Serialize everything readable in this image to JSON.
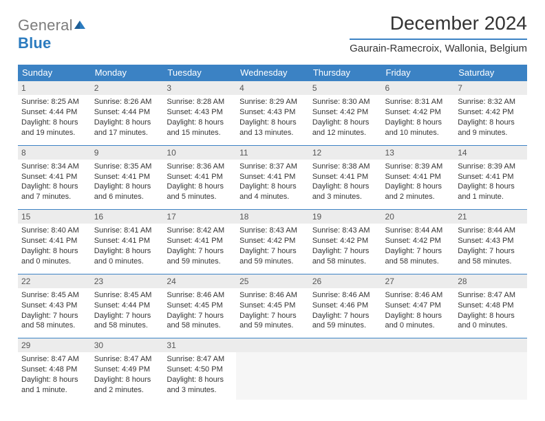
{
  "colors": {
    "accent": "#3b82c4",
    "header_cell_bg": "#ececec",
    "logo_gray": "#7c7c7c",
    "logo_blue": "#2b7bbf",
    "text": "#333333",
    "background": "#ffffff"
  },
  "logo": {
    "text_gray": "General",
    "text_blue": "Blue"
  },
  "title": "December 2024",
  "location": "Gaurain-Ramecroix, Wallonia, Belgium",
  "weekdays": [
    "Sunday",
    "Monday",
    "Tuesday",
    "Wednesday",
    "Thursday",
    "Friday",
    "Saturday"
  ],
  "days": [
    {
      "n": "1",
      "sr": "Sunrise: 8:25 AM",
      "ss": "Sunset: 4:44 PM",
      "dl1": "Daylight: 8 hours",
      "dl2": "and 19 minutes."
    },
    {
      "n": "2",
      "sr": "Sunrise: 8:26 AM",
      "ss": "Sunset: 4:44 PM",
      "dl1": "Daylight: 8 hours",
      "dl2": "and 17 minutes."
    },
    {
      "n": "3",
      "sr": "Sunrise: 8:28 AM",
      "ss": "Sunset: 4:43 PM",
      "dl1": "Daylight: 8 hours",
      "dl2": "and 15 minutes."
    },
    {
      "n": "4",
      "sr": "Sunrise: 8:29 AM",
      "ss": "Sunset: 4:43 PM",
      "dl1": "Daylight: 8 hours",
      "dl2": "and 13 minutes."
    },
    {
      "n": "5",
      "sr": "Sunrise: 8:30 AM",
      "ss": "Sunset: 4:42 PM",
      "dl1": "Daylight: 8 hours",
      "dl2": "and 12 minutes."
    },
    {
      "n": "6",
      "sr": "Sunrise: 8:31 AM",
      "ss": "Sunset: 4:42 PM",
      "dl1": "Daylight: 8 hours",
      "dl2": "and 10 minutes."
    },
    {
      "n": "7",
      "sr": "Sunrise: 8:32 AM",
      "ss": "Sunset: 4:42 PM",
      "dl1": "Daylight: 8 hours",
      "dl2": "and 9 minutes."
    },
    {
      "n": "8",
      "sr": "Sunrise: 8:34 AM",
      "ss": "Sunset: 4:41 PM",
      "dl1": "Daylight: 8 hours",
      "dl2": "and 7 minutes."
    },
    {
      "n": "9",
      "sr": "Sunrise: 8:35 AM",
      "ss": "Sunset: 4:41 PM",
      "dl1": "Daylight: 8 hours",
      "dl2": "and 6 minutes."
    },
    {
      "n": "10",
      "sr": "Sunrise: 8:36 AM",
      "ss": "Sunset: 4:41 PM",
      "dl1": "Daylight: 8 hours",
      "dl2": "and 5 minutes."
    },
    {
      "n": "11",
      "sr": "Sunrise: 8:37 AM",
      "ss": "Sunset: 4:41 PM",
      "dl1": "Daylight: 8 hours",
      "dl2": "and 4 minutes."
    },
    {
      "n": "12",
      "sr": "Sunrise: 8:38 AM",
      "ss": "Sunset: 4:41 PM",
      "dl1": "Daylight: 8 hours",
      "dl2": "and 3 minutes."
    },
    {
      "n": "13",
      "sr": "Sunrise: 8:39 AM",
      "ss": "Sunset: 4:41 PM",
      "dl1": "Daylight: 8 hours",
      "dl2": "and 2 minutes."
    },
    {
      "n": "14",
      "sr": "Sunrise: 8:39 AM",
      "ss": "Sunset: 4:41 PM",
      "dl1": "Daylight: 8 hours",
      "dl2": "and 1 minute."
    },
    {
      "n": "15",
      "sr": "Sunrise: 8:40 AM",
      "ss": "Sunset: 4:41 PM",
      "dl1": "Daylight: 8 hours",
      "dl2": "and 0 minutes."
    },
    {
      "n": "16",
      "sr": "Sunrise: 8:41 AM",
      "ss": "Sunset: 4:41 PM",
      "dl1": "Daylight: 8 hours",
      "dl2": "and 0 minutes."
    },
    {
      "n": "17",
      "sr": "Sunrise: 8:42 AM",
      "ss": "Sunset: 4:41 PM",
      "dl1": "Daylight: 7 hours",
      "dl2": "and 59 minutes."
    },
    {
      "n": "18",
      "sr": "Sunrise: 8:43 AM",
      "ss": "Sunset: 4:42 PM",
      "dl1": "Daylight: 7 hours",
      "dl2": "and 59 minutes."
    },
    {
      "n": "19",
      "sr": "Sunrise: 8:43 AM",
      "ss": "Sunset: 4:42 PM",
      "dl1": "Daylight: 7 hours",
      "dl2": "and 58 minutes."
    },
    {
      "n": "20",
      "sr": "Sunrise: 8:44 AM",
      "ss": "Sunset: 4:42 PM",
      "dl1": "Daylight: 7 hours",
      "dl2": "and 58 minutes."
    },
    {
      "n": "21",
      "sr": "Sunrise: 8:44 AM",
      "ss": "Sunset: 4:43 PM",
      "dl1": "Daylight: 7 hours",
      "dl2": "and 58 minutes."
    },
    {
      "n": "22",
      "sr": "Sunrise: 8:45 AM",
      "ss": "Sunset: 4:43 PM",
      "dl1": "Daylight: 7 hours",
      "dl2": "and 58 minutes."
    },
    {
      "n": "23",
      "sr": "Sunrise: 8:45 AM",
      "ss": "Sunset: 4:44 PM",
      "dl1": "Daylight: 7 hours",
      "dl2": "and 58 minutes."
    },
    {
      "n": "24",
      "sr": "Sunrise: 8:46 AM",
      "ss": "Sunset: 4:45 PM",
      "dl1": "Daylight: 7 hours",
      "dl2": "and 58 minutes."
    },
    {
      "n": "25",
      "sr": "Sunrise: 8:46 AM",
      "ss": "Sunset: 4:45 PM",
      "dl1": "Daylight: 7 hours",
      "dl2": "and 59 minutes."
    },
    {
      "n": "26",
      "sr": "Sunrise: 8:46 AM",
      "ss": "Sunset: 4:46 PM",
      "dl1": "Daylight: 7 hours",
      "dl2": "and 59 minutes."
    },
    {
      "n": "27",
      "sr": "Sunrise: 8:46 AM",
      "ss": "Sunset: 4:47 PM",
      "dl1": "Daylight: 8 hours",
      "dl2": "and 0 minutes."
    },
    {
      "n": "28",
      "sr": "Sunrise: 8:47 AM",
      "ss": "Sunset: 4:48 PM",
      "dl1": "Daylight: 8 hours",
      "dl2": "and 0 minutes."
    },
    {
      "n": "29",
      "sr": "Sunrise: 8:47 AM",
      "ss": "Sunset: 4:48 PM",
      "dl1": "Daylight: 8 hours",
      "dl2": "and 1 minute."
    },
    {
      "n": "30",
      "sr": "Sunrise: 8:47 AM",
      "ss": "Sunset: 4:49 PM",
      "dl1": "Daylight: 8 hours",
      "dl2": "and 2 minutes."
    },
    {
      "n": "31",
      "sr": "Sunrise: 8:47 AM",
      "ss": "Sunset: 4:50 PM",
      "dl1": "Daylight: 8 hours",
      "dl2": "and 3 minutes."
    }
  ]
}
